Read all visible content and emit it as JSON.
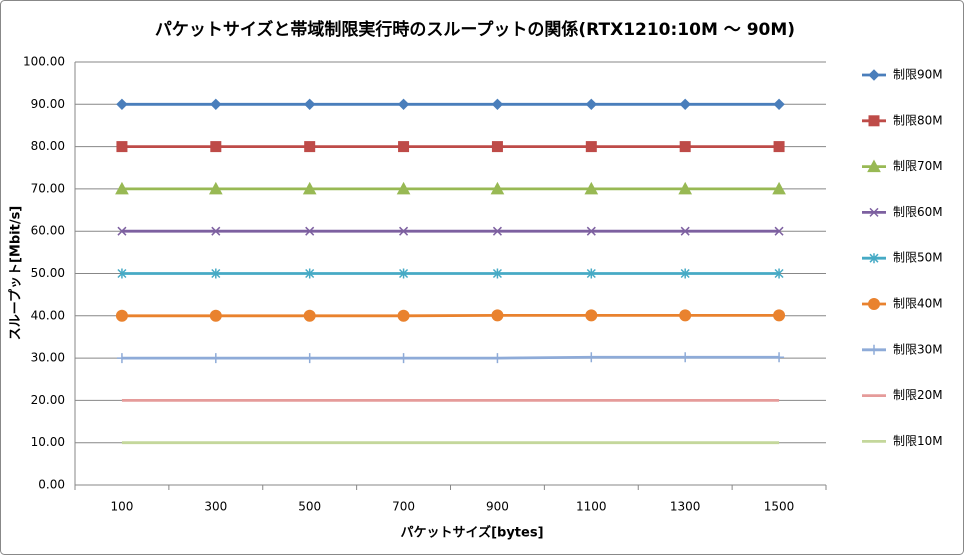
{
  "chart_data": {
    "type": "line",
    "title": "パケットサイズと帯域制限実行時のスループットの関係(RTX1210:10M ～ 90M)",
    "x_label": "パケットサイズ[bytes]",
    "y_label": "スループット[Mbit/s]",
    "categories": [
      "100",
      "300",
      "500",
      "700",
      "900",
      "1100",
      "1300",
      "1500"
    ],
    "ylim": [
      0,
      100
    ],
    "yticks": [
      {
        "value": 0,
        "label": "0.00"
      },
      {
        "value": 10,
        "label": "10.00"
      },
      {
        "value": 20,
        "label": "20.00"
      },
      {
        "value": 30,
        "label": "30.00"
      },
      {
        "value": 40,
        "label": "40.00"
      },
      {
        "value": 50,
        "label": "50.00"
      },
      {
        "value": 60,
        "label": "60.00"
      },
      {
        "value": 70,
        "label": "70.00"
      },
      {
        "value": 80,
        "label": "80.00"
      },
      {
        "value": 90,
        "label": "90.00"
      },
      {
        "value": 100,
        "label": "100.00"
      }
    ],
    "grid": true,
    "legend": "right",
    "series": [
      {
        "name": "制限90M",
        "color": "#4a7ebb",
        "marker": "diamond",
        "values": [
          90,
          90,
          90,
          90,
          90,
          90,
          90,
          90
        ]
      },
      {
        "name": "制限80M",
        "color": "#be4b48",
        "marker": "square",
        "values": [
          80,
          80,
          80,
          80,
          80,
          80,
          80,
          80
        ]
      },
      {
        "name": "制限70M",
        "color": "#98b954",
        "marker": "triangle",
        "values": [
          70,
          70,
          70,
          70,
          70,
          70,
          70,
          70
        ]
      },
      {
        "name": "制限60M",
        "color": "#7d60a0",
        "marker": "x",
        "values": [
          60,
          60,
          60,
          60,
          60,
          60,
          60,
          60
        ]
      },
      {
        "name": "制限50M",
        "color": "#46aac5",
        "marker": "star",
        "values": [
          50,
          50,
          50,
          50,
          50,
          50,
          50,
          50
        ]
      },
      {
        "name": "制限40M",
        "color": "#e9822e",
        "marker": "circle",
        "values": [
          40,
          40,
          40,
          40,
          40.1,
          40.1,
          40.1,
          40.1
        ]
      },
      {
        "name": "制限30M",
        "color": "#8eabd8",
        "marker": "plus",
        "values": [
          30,
          30,
          30,
          30,
          30,
          30.2,
          30.2,
          30.2
        ]
      },
      {
        "name": "制限20M",
        "color": "#e59b9a",
        "marker": "none",
        "values": [
          20,
          20,
          20,
          20,
          20,
          20,
          20,
          20
        ]
      },
      {
        "name": "制限10M",
        "color": "#c4d79b",
        "marker": "none",
        "values": [
          10,
          10,
          10,
          10,
          10,
          10,
          10,
          10
        ]
      }
    ]
  }
}
